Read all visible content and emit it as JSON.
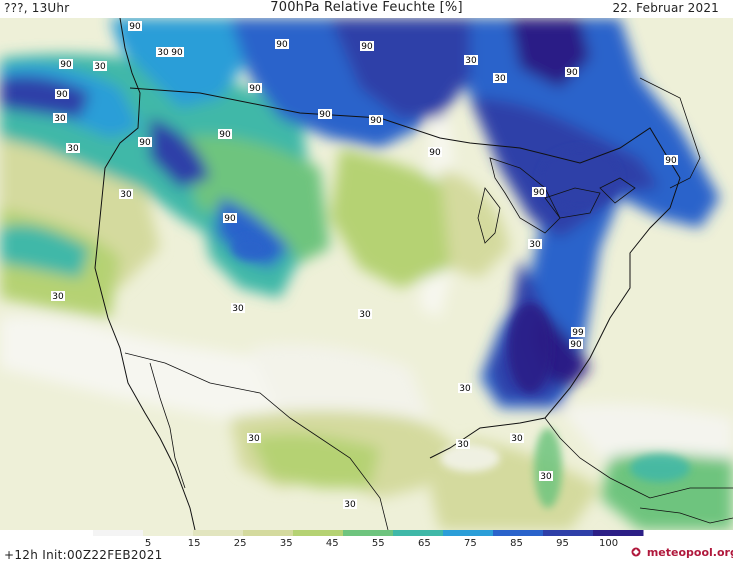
{
  "header": {
    "left": "???, 13Uhr",
    "title": "700hPa Relative Feuchte [%]",
    "date": "22. Februar 2021"
  },
  "footer": {
    "init": "+12h  Init:00Z22FEB2021",
    "logo_icon": "meteopool-logo-icon",
    "logo_text": "meteopool.org"
  },
  "legend": {
    "ticks": [
      "5",
      "15",
      "25",
      "35",
      "45",
      "55",
      "65",
      "75",
      "85",
      "95",
      "100"
    ],
    "colors": [
      "#f4f4f4",
      "#eef0d8",
      "#e2e5bf",
      "#d4da9e",
      "#b5d273",
      "#6ec47e",
      "#3fb8a8",
      "#2b9ed8",
      "#2a63cb",
      "#2f3fa8",
      "#2c1f86"
    ]
  },
  "contour_labels": [
    "90",
    "90",
    "90",
    "90",
    "90",
    "30",
    "30",
    "30",
    "30",
    "90",
    "90",
    "90",
    "90",
    "90",
    "30",
    "90",
    "30",
    "90",
    "90",
    "90",
    "90",
    "30",
    "30",
    "30",
    "30",
    "30",
    "90",
    "99",
    "90",
    "30",
    "30",
    "30",
    "30",
    "30",
    "30"
  ]
}
